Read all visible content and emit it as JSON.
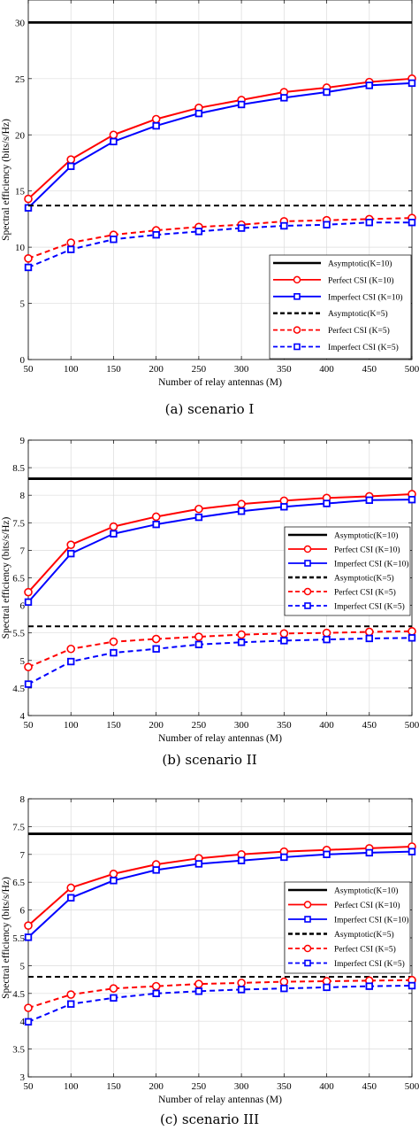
{
  "chart_data": [
    {
      "type": "line",
      "caption": "(a) scenario I",
      "xlabel": "Number of relay antennas (M)",
      "ylabel": "Spectral efficiency (bits/s/Hz)",
      "xlim": [
        50,
        500
      ],
      "ylim": [
        0,
        32
      ],
      "x_ticks": [
        50,
        100,
        150,
        200,
        250,
        300,
        350,
        400,
        450,
        500
      ],
      "y_ticks": [
        0,
        5,
        10,
        15,
        20,
        25,
        30
      ],
      "grid": true,
      "legend_position": "bottom-right",
      "x": [
        50,
        100,
        150,
        200,
        250,
        300,
        350,
        400,
        450,
        500
      ],
      "series": [
        {
          "name": "Asymptotic(K=10)",
          "color": "#000000",
          "style": "solid",
          "marker": "none",
          "values": [
            30,
            30,
            30,
            30,
            30,
            30,
            30,
            30,
            30,
            30
          ]
        },
        {
          "name": "Perfect CSI (K=10)",
          "color": "#ff0000",
          "style": "solid",
          "marker": "circle",
          "values": [
            14.3,
            17.8,
            20.0,
            21.4,
            22.4,
            23.1,
            23.8,
            24.2,
            24.7,
            25.0
          ]
        },
        {
          "name": "Imperfect CSI (K=10)",
          "color": "#0000ff",
          "style": "solid",
          "marker": "square",
          "values": [
            13.5,
            17.2,
            19.4,
            20.8,
            21.9,
            22.7,
            23.3,
            23.8,
            24.4,
            24.6
          ]
        },
        {
          "name": "Asymptotic(K=5)",
          "color": "#000000",
          "style": "dashed",
          "marker": "none",
          "values": [
            13.7,
            13.7,
            13.7,
            13.7,
            13.7,
            13.7,
            13.7,
            13.7,
            13.7,
            13.7
          ]
        },
        {
          "name": "Perfect CSI (K=5)",
          "color": "#ff0000",
          "style": "dashed",
          "marker": "circle",
          "values": [
            9.0,
            10.4,
            11.1,
            11.5,
            11.8,
            12.0,
            12.3,
            12.4,
            12.5,
            12.6
          ]
        },
        {
          "name": "Imperfect CSI (K=5)",
          "color": "#0000ff",
          "style": "dashed",
          "marker": "square",
          "values": [
            8.2,
            9.8,
            10.7,
            11.1,
            11.4,
            11.7,
            11.9,
            12.0,
            12.2,
            12.2
          ]
        }
      ]
    },
    {
      "type": "line",
      "caption": "(b) scenario II",
      "xlabel": "Number of relay antennas (M)",
      "ylabel": "Spectral efficiency (bits/s/Hz)",
      "xlim": [
        50,
        500
      ],
      "ylim": [
        4,
        9
      ],
      "x_ticks": [
        50,
        100,
        150,
        200,
        250,
        300,
        350,
        400,
        450,
        500
      ],
      "y_ticks": [
        4,
        4.5,
        5,
        5.5,
        6,
        6.5,
        7,
        7.5,
        8,
        8.5,
        9
      ],
      "grid": true,
      "legend_position": "center-right",
      "x": [
        50,
        100,
        150,
        200,
        250,
        300,
        350,
        400,
        450,
        500
      ],
      "series": [
        {
          "name": "Asymptotic(K=10)",
          "color": "#000000",
          "style": "solid",
          "marker": "none",
          "values": [
            8.3,
            8.3,
            8.3,
            8.3,
            8.3,
            8.3,
            8.3,
            8.3,
            8.3,
            8.3
          ]
        },
        {
          "name": "Perfect CSI (K=10)",
          "color": "#ff0000",
          "style": "solid",
          "marker": "circle",
          "values": [
            6.24,
            7.1,
            7.43,
            7.61,
            7.75,
            7.84,
            7.9,
            7.95,
            7.98,
            8.02
          ]
        },
        {
          "name": "Imperfect CSI (K=10)",
          "color": "#0000ff",
          "style": "solid",
          "marker": "square",
          "values": [
            6.06,
            6.94,
            7.3,
            7.47,
            7.6,
            7.71,
            7.79,
            7.85,
            7.91,
            7.92
          ]
        },
        {
          "name": "Asymptotic(K=5)",
          "color": "#000000",
          "style": "dashed",
          "marker": "none",
          "values": [
            5.62,
            5.62,
            5.62,
            5.62,
            5.62,
            5.62,
            5.62,
            5.62,
            5.62,
            5.62
          ]
        },
        {
          "name": "Perfect CSI (K=5)",
          "color": "#ff0000",
          "style": "dashed",
          "marker": "circle",
          "values": [
            4.88,
            5.21,
            5.34,
            5.39,
            5.43,
            5.47,
            5.49,
            5.5,
            5.52,
            5.53
          ]
        },
        {
          "name": "Imperfect CSI (K=5)",
          "color": "#0000ff",
          "style": "dashed",
          "marker": "square",
          "values": [
            4.57,
            4.98,
            5.14,
            5.21,
            5.29,
            5.33,
            5.36,
            5.38,
            5.4,
            5.41
          ]
        }
      ]
    },
    {
      "type": "line",
      "caption": "(c) scenario III",
      "xlabel": "Number of relay antennas (M)",
      "ylabel": "Spectral efficiency (bits/s/Hz)",
      "xlim": [
        50,
        500
      ],
      "ylim": [
        3,
        8
      ],
      "x_ticks": [
        50,
        100,
        150,
        200,
        250,
        300,
        350,
        400,
        450,
        500
      ],
      "y_ticks": [
        3,
        3.5,
        4,
        4.5,
        5,
        5.5,
        6,
        6.5,
        7,
        7.5,
        8
      ],
      "grid": true,
      "legend_position": "center-right",
      "x": [
        50,
        100,
        150,
        200,
        250,
        300,
        350,
        400,
        450,
        500
      ],
      "series": [
        {
          "name": "Asymptotic(K=10)",
          "color": "#000000",
          "style": "solid",
          "marker": "none",
          "values": [
            7.37,
            7.37,
            7.37,
            7.37,
            7.37,
            7.37,
            7.37,
            7.37,
            7.37,
            7.37
          ]
        },
        {
          "name": "Perfect CSI (K=10)",
          "color": "#ff0000",
          "style": "solid",
          "marker": "circle",
          "values": [
            5.72,
            6.4,
            6.65,
            6.82,
            6.93,
            7.0,
            7.05,
            7.08,
            7.11,
            7.14
          ]
        },
        {
          "name": "Imperfect CSI (K=10)",
          "color": "#0000ff",
          "style": "solid",
          "marker": "square",
          "values": [
            5.51,
            6.22,
            6.53,
            6.72,
            6.83,
            6.89,
            6.95,
            7.0,
            7.03,
            7.05
          ]
        },
        {
          "name": "Asymptotic(K=5)",
          "color": "#000000",
          "style": "dashed",
          "marker": "none",
          "values": [
            4.8,
            4.8,
            4.8,
            4.8,
            4.8,
            4.8,
            4.8,
            4.8,
            4.8,
            4.8
          ]
        },
        {
          "name": "Perfect CSI (K=5)",
          "color": "#ff0000",
          "style": "dashed",
          "marker": "circle",
          "values": [
            4.24,
            4.48,
            4.59,
            4.63,
            4.67,
            4.69,
            4.71,
            4.72,
            4.73,
            4.74
          ]
        },
        {
          "name": "Imperfect CSI (K=5)",
          "color": "#0000ff",
          "style": "dashed",
          "marker": "square",
          "values": [
            3.99,
            4.31,
            4.42,
            4.5,
            4.54,
            4.57,
            4.59,
            4.61,
            4.63,
            4.64
          ]
        }
      ]
    }
  ]
}
